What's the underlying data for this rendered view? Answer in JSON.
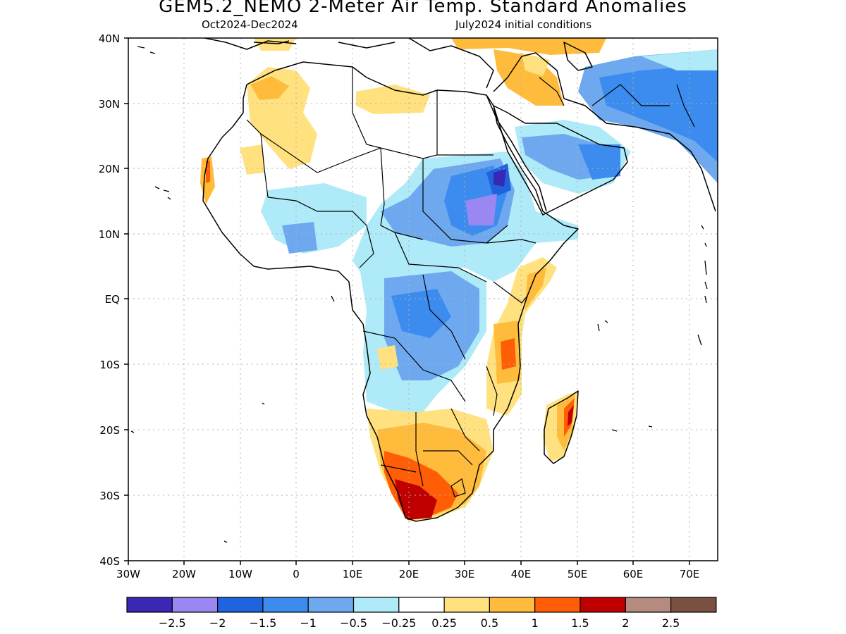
{
  "header": {
    "title": "GEM5.2_NEMO 2-Meter Air Temp. Standard Anomalies",
    "period": "Oct2024-Dec2024",
    "init": "July2024 initial conditions"
  },
  "axes": {
    "lon_labels": [
      "30W",
      "20W",
      "10W",
      "0",
      "10E",
      "20E",
      "30E",
      "40E",
      "50E",
      "60E",
      "70E"
    ],
    "lat_labels": [
      "40N",
      "30N",
      "20N",
      "10N",
      "EQ",
      "10S",
      "20S",
      "30S",
      "40S"
    ]
  },
  "colorbar": {
    "colors": [
      "#3a27b4",
      "#9b87f2",
      "#1f63de",
      "#3b8cee",
      "#6ea9f0",
      "#aeeaf7",
      "#ffffff",
      "#ffe27f",
      "#ffbc3c",
      "#ff5e06",
      "#c00000",
      "#b58a7f",
      "#7a5042"
    ],
    "labels": [
      "-2.5",
      "-2",
      "-1.5",
      "-1",
      "-0.5",
      "-0.25",
      "0.25",
      "0.5",
      "1",
      "1.5",
      "2",
      "2.5"
    ]
  }
}
